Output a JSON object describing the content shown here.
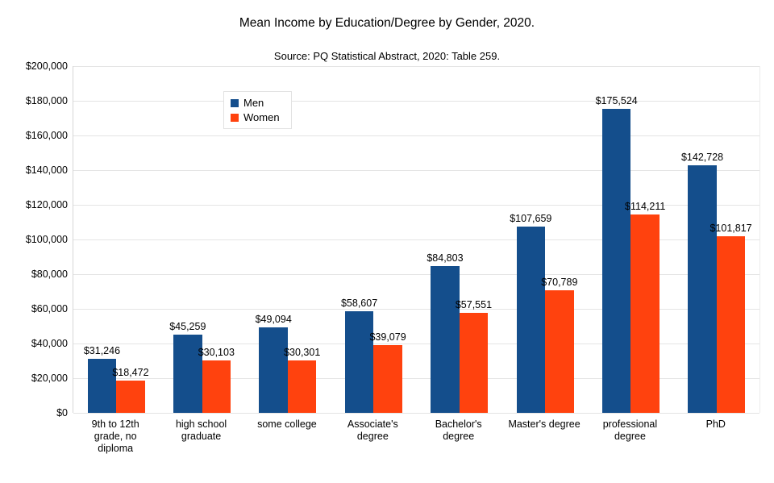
{
  "chart_data": {
    "type": "bar",
    "title": "Mean Income by Education/Degree by Gender, 2020.",
    "subtitle": "Source: PQ Statistical Abstract, 2020: Table 259.",
    "categories": [
      "9th to 12th grade, no diploma",
      "high school graduate",
      "some college",
      "Associate's degree",
      "Bachelor's degree",
      "Master's degree",
      "professional degree",
      "PhD"
    ],
    "categories_wrapped": [
      "9th to 12th\ngrade, no\ndiploma",
      "high school\ngraduate",
      "some college",
      "Associate's\ndegree",
      "Bachelor's\ndegree",
      "Master's degree",
      "professional\ndegree",
      "PhD"
    ],
    "series": [
      {
        "name": "Men",
        "color": "#144E8C",
        "values": [
          31246,
          45259,
          49094,
          58607,
          84803,
          107659,
          175524,
          142728
        ]
      },
      {
        "name": "Women",
        "color": "#FF420E",
        "values": [
          18472,
          30103,
          30301,
          39079,
          57551,
          70789,
          114211,
          101817
        ]
      }
    ],
    "xlabel": "",
    "ylabel": "",
    "ylim": [
      0,
      200000
    ],
    "ytick_step": 20000,
    "ytick_format": "$#,##0",
    "value_labels": true,
    "grid": true,
    "legend_position": "upper-left-inside",
    "colors": {
      "grid": "#E4E4E4",
      "axis": "#D6D6D6",
      "text": "#000000",
      "background": "#FFFFFF"
    }
  }
}
